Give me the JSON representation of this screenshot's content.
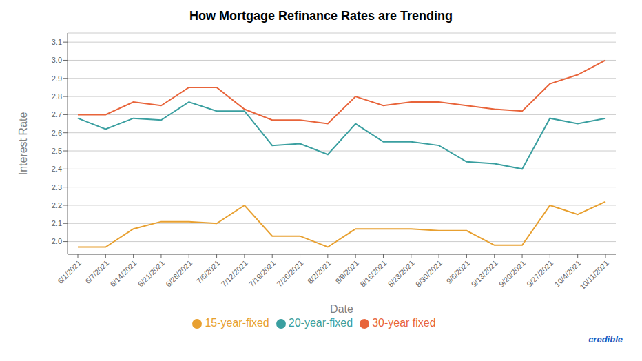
{
  "chart_data": {
    "type": "line",
    "title": "How Mortgage Refinance Rates are Trending",
    "xlabel": "Date",
    "ylabel": "Interest Rate",
    "categories": [
      "6/1/2021",
      "6/7/2021",
      "6/14/2021",
      "6/21/2021",
      "6/28/2021",
      "7/6/2021",
      "7/12/2021",
      "7/19/2021",
      "7/26/2021",
      "8/2/2021",
      "8/9/2021",
      "8/16/2021",
      "8/23/2021",
      "8/30/2021",
      "9/6/2021",
      "9/13/2021",
      "9/20/2021",
      "9/27/2021",
      "10/4/2021",
      "10/11/2021"
    ],
    "series": [
      {
        "name": "30-year fixed",
        "color": "#e8643a",
        "values": [
          2.7,
          2.7,
          2.77,
          2.75,
          2.85,
          2.85,
          2.73,
          2.67,
          2.67,
          2.65,
          2.8,
          2.75,
          2.77,
          2.77,
          2.75,
          2.73,
          2.72,
          2.87,
          2.92,
          3.0
        ]
      },
      {
        "name": "20-year-fixed",
        "color": "#3a9fa0",
        "values": [
          2.68,
          2.62,
          2.68,
          2.67,
          2.77,
          2.72,
          2.72,
          2.53,
          2.54,
          2.48,
          2.65,
          2.55,
          2.55,
          2.53,
          2.44,
          2.43,
          2.4,
          2.68,
          2.65,
          2.68
        ]
      },
      {
        "name": "15-year-fixed",
        "color": "#e8a030",
        "values": [
          1.97,
          1.97,
          2.07,
          2.11,
          2.11,
          2.1,
          2.2,
          2.03,
          2.03,
          1.97,
          2.07,
          2.07,
          2.07,
          2.06,
          2.06,
          1.98,
          1.98,
          2.2,
          2.15,
          2.22
        ]
      }
    ],
    "ylim": [
      1.93,
      3.15
    ],
    "yticks": [
      {
        "value": 2.0,
        "label": "2.0"
      },
      2.1,
      2.2,
      2.3,
      2.4,
      2.5,
      2.6,
      2.7,
      2.8,
      2.9,
      {
        "value": 3.0,
        "label": "3.0"
      },
      3.1
    ],
    "grid": true,
    "legend": "bottom",
    "annotations": [
      {
        "text": "credible",
        "color": "#1a5bbf"
      }
    ]
  }
}
